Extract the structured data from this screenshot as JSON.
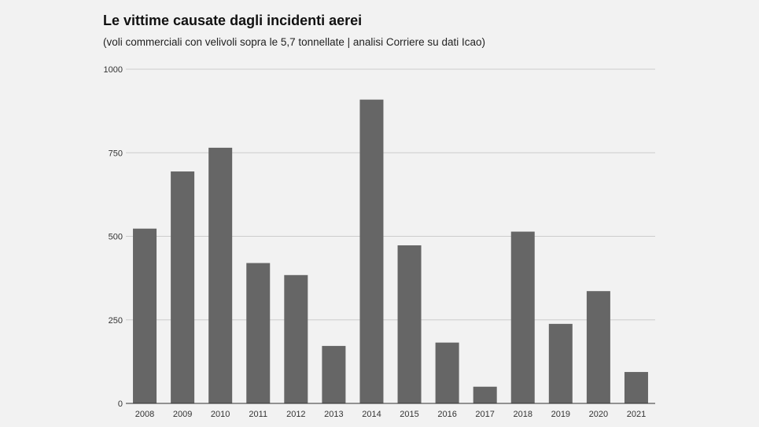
{
  "chart_data": {
    "type": "bar",
    "title": "Le vittime causate dagli incidenti aerei",
    "subtitle": "(voli commerciali con velivoli sopra le 5,7 tonnellate | analisi Corriere su dati Icao)",
    "xlabel": "",
    "ylabel": "",
    "categories": [
      "2008",
      "2009",
      "2010",
      "2011",
      "2012",
      "2013",
      "2014",
      "2015",
      "2016",
      "2017",
      "2018",
      "2019",
      "2020",
      "2021"
    ],
    "values": [
      523,
      694,
      765,
      420,
      384,
      172,
      909,
      473,
      182,
      50,
      514,
      238,
      336,
      94
    ],
    "ylim": [
      0,
      1000
    ],
    "yticks": [
      0,
      250,
      500,
      750,
      1000
    ],
    "ytick_labels": [
      "0",
      "250",
      "500",
      "750",
      "1000"
    ],
    "grid": true,
    "legend": "none",
    "colors": {
      "bar": "#666666",
      "grid": "#cccccc",
      "axis": "#333333",
      "background": "#f2f2f2"
    }
  }
}
